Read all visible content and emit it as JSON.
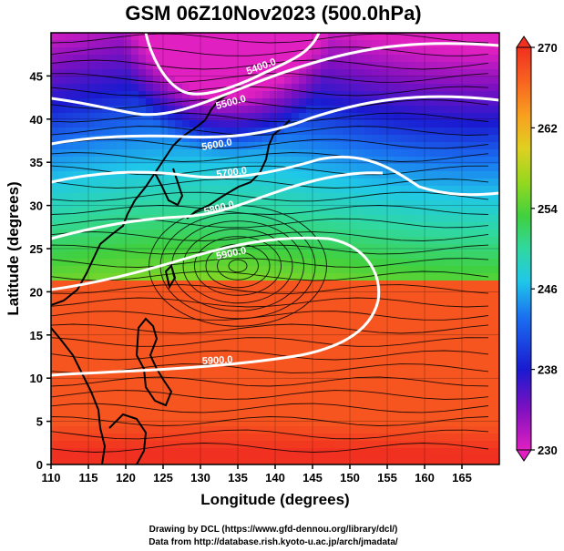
{
  "title": "GSM 06Z10Nov2023 (500.0hPa)",
  "xlabel": "Longitude (degrees)",
  "ylabel": "Latitude  (degrees)",
  "credits": [
    "Drawing by DCL (https://www.gfd-dennou.org/library/dcl/)",
    "Data from http://database.rish.kyoto-u.ac.jp/arch/jmadata/"
  ],
  "chart_data": {
    "type": "heatmap",
    "xlim": [
      110,
      170
    ],
    "ylim": [
      0,
      50
    ],
    "xticks": [
      110,
      115,
      120,
      125,
      130,
      135,
      140,
      145,
      150,
      155,
      160,
      165
    ],
    "yticks": [
      0,
      5,
      10,
      15,
      20,
      25,
      30,
      35,
      40,
      45
    ],
    "grid": true,
    "colorbar": {
      "min": 230,
      "max": 270,
      "ticks": [
        230,
        238,
        246,
        254,
        262,
        270
      ],
      "colors": [
        "#e020c0",
        "#8010c0",
        "#1a1ad0",
        "#1a70f0",
        "#20c8e8",
        "#30d8a0",
        "#40d040",
        "#90d820",
        "#e0d020",
        "#f8a020",
        "#f86020",
        "#f03020"
      ]
    },
    "contour_labels": [
      "5400.0",
      "5500.0",
      "5600.0",
      "5700.0",
      "5800.0",
      "5900.0",
      "5900.0"
    ]
  }
}
